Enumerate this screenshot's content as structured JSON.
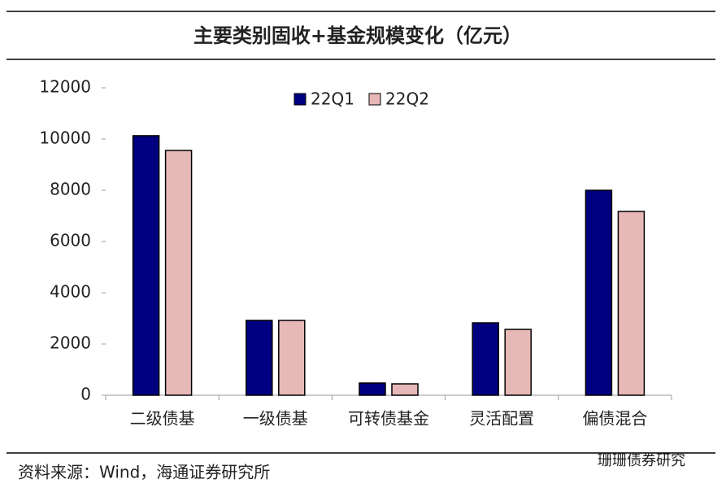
{
  "chart_data": {
    "type": "bar",
    "title": "主要类别固收+基金规模变化（亿元）",
    "categories": [
      "二级债基",
      "一级债基",
      "可转债基金",
      "灵活配置",
      "偏债混合"
    ],
    "series": [
      {
        "name": "22Q1",
        "color": "#000080",
        "values": [
          10130,
          2920,
          476,
          2825,
          8000
        ]
      },
      {
        "name": "22Q2",
        "color": "#e6b8b7",
        "values": [
          9555,
          2920,
          444,
          2570,
          7175
        ]
      }
    ],
    "ylim": [
      0,
      12000
    ],
    "yticks": [
      0,
      2000,
      4000,
      6000,
      8000,
      10000,
      12000
    ],
    "grid": false,
    "legend": "top",
    "source": "资料来源：Wind，海通证券研究所",
    "watermark": "珊珊债券研究"
  }
}
